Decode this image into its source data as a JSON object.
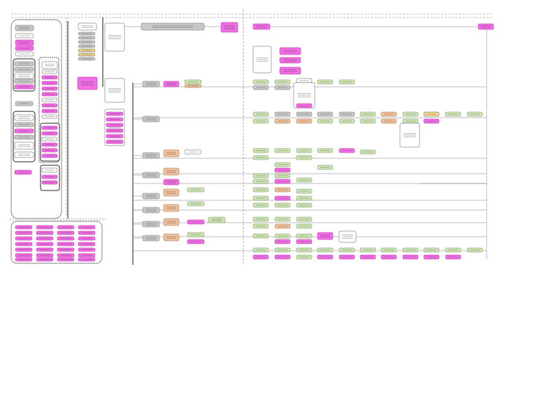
{
  "colors": {
    "magenta": "#f26ee6",
    "magenta_stroke": "#b0259f",
    "gray": "#c9c9c9",
    "gray_stroke": "#6b6b6b",
    "green": "#cfe6b7",
    "green_stroke": "#6c8a4f",
    "orange": "#f1c19d",
    "orange_stroke": "#9b6a3f",
    "yellow": "#f3db8f",
    "white": "#ffffff",
    "line": "#707070",
    "dark_line": "#111111"
  },
  "diagram": {
    "nodes": [
      {
        "id": "top-left-1",
        "fill": "magenta"
      },
      {
        "id": "legend-block",
        "fill": "white"
      }
    ]
  }
}
